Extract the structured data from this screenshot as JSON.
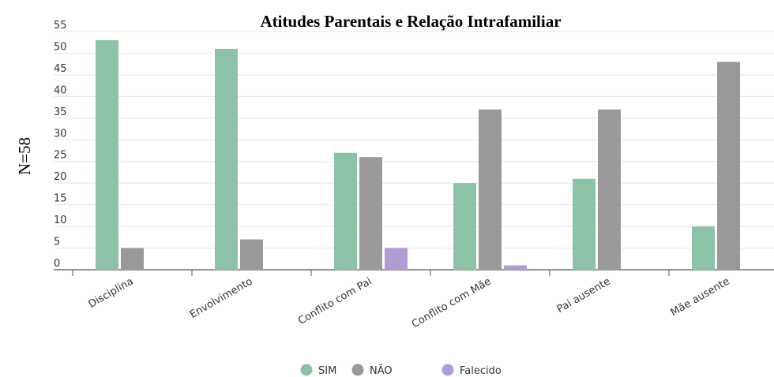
{
  "side_label": "N=58",
  "chart_data": {
    "type": "bar",
    "title": "Atitudes Parentais e Relação Intrafamiliar",
    "categories": [
      "Disciplina",
      "Envolvimento",
      "Conflito com Pai",
      "Conflito com Mãe",
      "Pai ausente",
      "Mãe ausente"
    ],
    "series": [
      {
        "name": "SIM",
        "color": "#8cc3a6",
        "values": [
          53,
          51,
          27,
          20,
          21,
          10
        ]
      },
      {
        "name": "NÃO",
        "color": "#999999",
        "values": [
          5,
          7,
          26,
          37,
          37,
          48
        ]
      },
      {
        "name": "Falecido",
        "color": "#b09bd2",
        "values": [
          0,
          0,
          5,
          1,
          0,
          0
        ]
      }
    ],
    "yticks": [
      0,
      5,
      10,
      15,
      20,
      25,
      30,
      35,
      40,
      45,
      50,
      55
    ],
    "ylim": [
      0,
      55
    ],
    "grid": true,
    "legend_position": "bottom"
  }
}
